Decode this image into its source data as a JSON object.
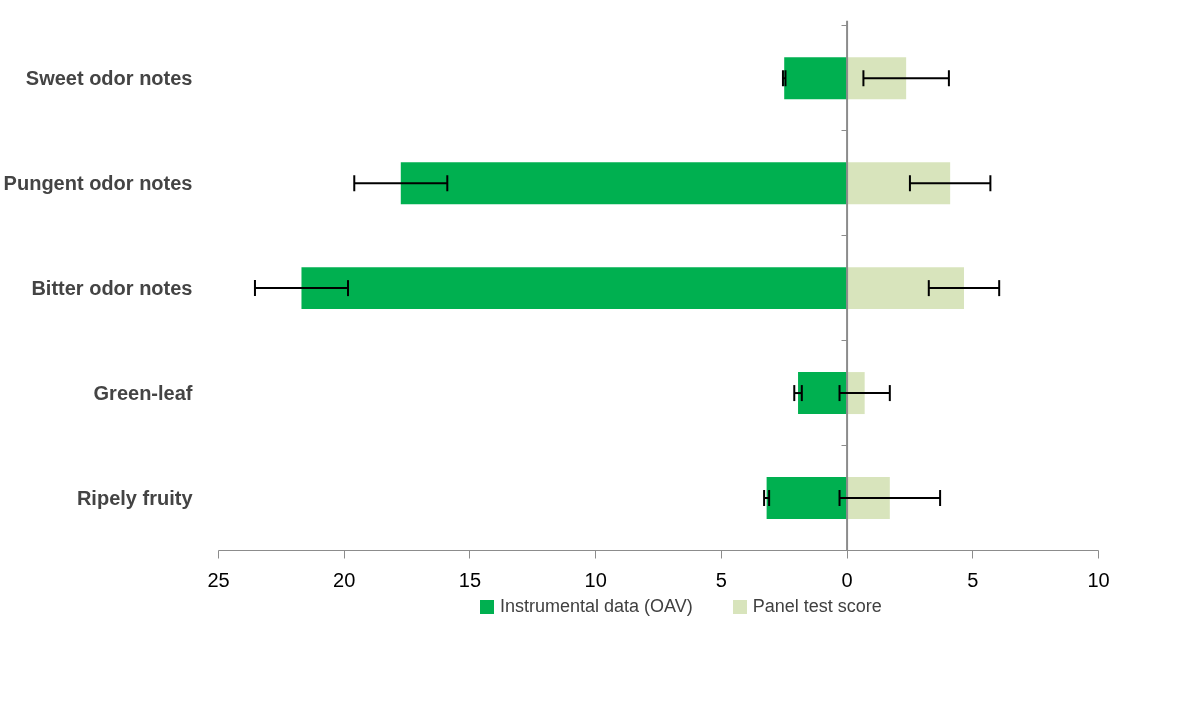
{
  "chart_data": {
    "type": "bar",
    "orientation": "horizontal",
    "categories": [
      "Sweet odor notes",
      "Pungent odor notes",
      "Bitter odor notes",
      "Green-leaf",
      "Ripely fruity"
    ],
    "series": [
      {
        "name": "Instrumental data (OAV)",
        "color": "#00b050",
        "values": [
          -2.5,
          -17.75,
          -21.7,
          -1.95,
          -3.2
        ],
        "errors": [
          0.05,
          1.85,
          1.85,
          0.15,
          0.1
        ]
      },
      {
        "name": "Panel test score",
        "color": "#d8e4bc",
        "values": [
          2.35,
          4.1,
          4.65,
          0.7,
          1.7
        ],
        "errors": [
          1.7,
          1.6,
          1.4,
          1.0,
          2.0
        ]
      }
    ],
    "xlim": [
      -25,
      10
    ],
    "xticks": [
      {
        "value": -25,
        "label": "25"
      },
      {
        "value": -20,
        "label": "20"
      },
      {
        "value": -15,
        "label": "15"
      },
      {
        "value": -10,
        "label": "10"
      },
      {
        "value": -5,
        "label": "5"
      },
      0,
      5,
      10
    ],
    "ref_lines": [
      {
        "axis": "x",
        "value": 0,
        "color": "#8c8c8c"
      }
    ],
    "grid": false,
    "legend": "bottom",
    "stacked": true
  }
}
